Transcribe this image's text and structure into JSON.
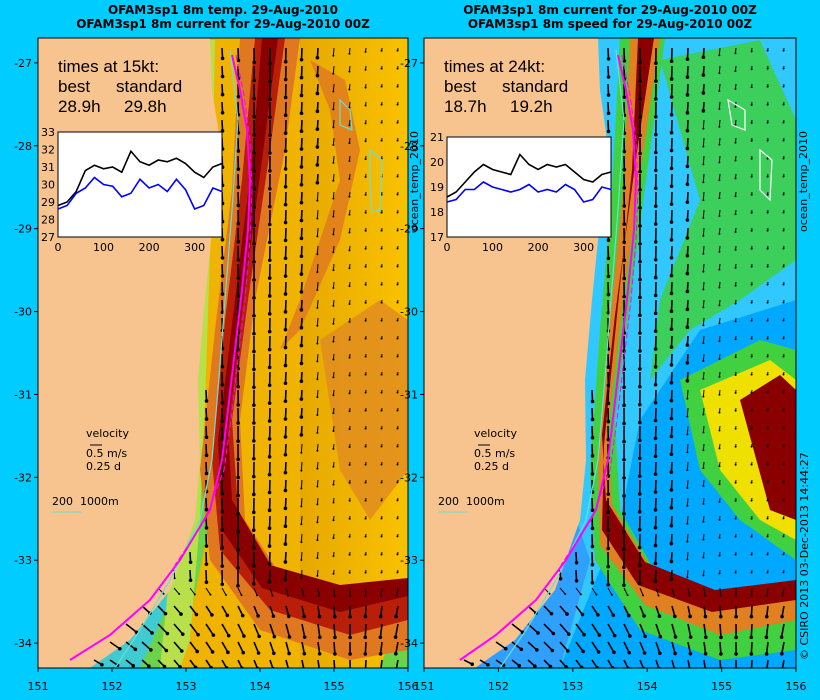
{
  "left": {
    "title1": "OFAM3sp1 8m temp. 29-Aug-2010",
    "title2": "OFAM3sp1 8m current for 29-Aug-2010 00Z",
    "variable_label": "ocean_temp_2010",
    "times_title": "times at 15kt:",
    "best_label": "best",
    "standard_label": "standard",
    "best_value": "28.9h",
    "standard_value": "29.8h",
    "inset_yticks": [
      "33",
      "32",
      "31",
      "30",
      "29",
      "28",
      "27"
    ],
    "inset_xticks": [
      "0",
      "100",
      "200",
      "300"
    ]
  },
  "right": {
    "title1": "OFAM3sp1 8m current for 29-Aug-2010 00Z",
    "title2": "OFAM3sp1 8m speed for 29-Aug-2010 00Z",
    "variable_label": "ocean_temp_2010",
    "times_title": "times at 24kt:",
    "best_label": "best",
    "standard_label": "standard",
    "best_value": "18.7h",
    "standard_value": "19.2h",
    "inset_yticks": [
      "21",
      "20",
      "19",
      "18",
      "17"
    ],
    "inset_xticks": [
      "0",
      "100",
      "200",
      "300"
    ]
  },
  "velocity_legend": {
    "label": "velocity",
    "speed": "0.5 m/s",
    "time": "0.25 d"
  },
  "depth_legend": {
    "a": "200",
    "b": "1000m"
  },
  "axes": {
    "y_ticks": [
      "-27",
      "-28",
      "-29",
      "-30",
      "-31",
      "-32",
      "-33",
      "-34"
    ],
    "x_ticks": [
      "151",
      "152",
      "153",
      "154",
      "155",
      "156"
    ]
  },
  "credit": "© CSIRO 2013   03-Dec-2013 14:44:27",
  "colors": {
    "background": "#00ccff",
    "land": "#f7c38f",
    "best_series": "#000000",
    "standard_series": "#0000ff",
    "route": "#ff00ff",
    "isobath": "#66e0d8"
  },
  "chart_data": [
    {
      "type": "heatmap",
      "title": "OFAM3sp1 8m temp. 29-Aug-2010",
      "xlim": [
        151,
        156
      ],
      "ylim": [
        -34.3,
        -26.7
      ],
      "variable": "ocean_temp_2010",
      "has_vectors": true
    },
    {
      "type": "line",
      "panel": "left-inset",
      "x": [
        0,
        20,
        40,
        60,
        80,
        100,
        120,
        140,
        160,
        180,
        200,
        220,
        240,
        260,
        280,
        300,
        320,
        340,
        360
      ],
      "series": [
        {
          "name": "best",
          "values": [
            28.8,
            29.0,
            29.6,
            30.8,
            31.1,
            30.9,
            31.0,
            30.7,
            31.9,
            31.3,
            31.1,
            31.4,
            31.3,
            31.5,
            31.2,
            30.7,
            30.4,
            31.0,
            31.2
          ]
        },
        {
          "name": "standard",
          "values": [
            28.6,
            28.8,
            29.5,
            29.8,
            30.4,
            30.0,
            29.9,
            29.3,
            29.5,
            30.3,
            29.8,
            30.0,
            29.6,
            30.3,
            29.7,
            28.6,
            28.8,
            29.8,
            29.6
          ]
        }
      ],
      "ylim": [
        27,
        33
      ],
      "xlim": [
        0,
        360
      ]
    },
    {
      "type": "heatmap",
      "title": "OFAM3sp1 8m speed for 29-Aug-2010 00Z",
      "xlim": [
        151,
        156
      ],
      "ylim": [
        -34.3,
        -26.7
      ],
      "variable": "ocean_temp_2010",
      "has_vectors": true
    },
    {
      "type": "line",
      "panel": "right-inset",
      "x": [
        0,
        20,
        40,
        60,
        80,
        100,
        120,
        140,
        160,
        180,
        200,
        220,
        240,
        260,
        280,
        300,
        320,
        340,
        360
      ],
      "series": [
        {
          "name": "best",
          "values": [
            18.6,
            18.8,
            19.2,
            19.6,
            19.9,
            19.7,
            19.6,
            19.5,
            20.3,
            19.9,
            19.7,
            19.9,
            19.8,
            19.9,
            19.6,
            19.3,
            19.2,
            19.5,
            19.6
          ]
        },
        {
          "name": "standard",
          "values": [
            18.4,
            18.5,
            18.9,
            18.9,
            19.2,
            19.0,
            18.9,
            18.8,
            18.9,
            19.1,
            18.8,
            18.9,
            18.8,
            19.1,
            18.9,
            18.4,
            18.5,
            19.0,
            18.9
          ]
        }
      ],
      "ylim": [
        17,
        21
      ],
      "xlim": [
        0,
        360
      ]
    }
  ]
}
